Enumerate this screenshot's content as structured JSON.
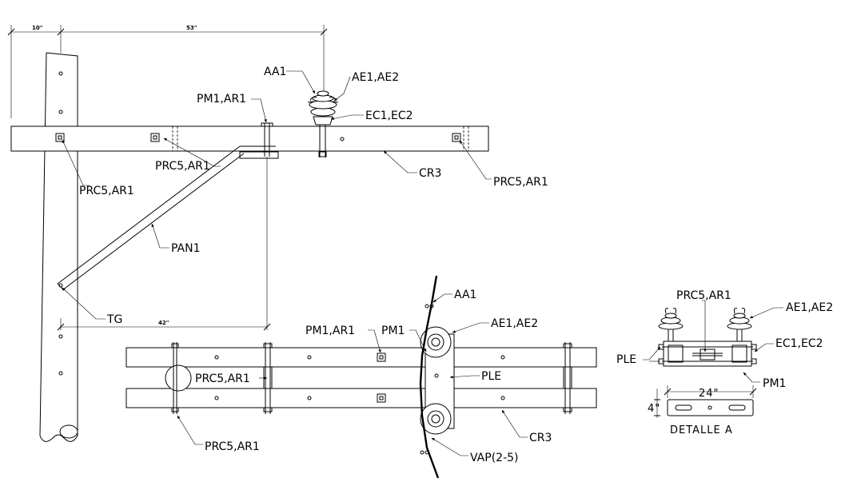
{
  "dimensions": {
    "top_left": "10\"",
    "top_right": "53\"",
    "brace": "42\"",
    "detail_width": "24\"",
    "detail_height": "4\""
  },
  "labels": {
    "aa1_top": "AA1",
    "ae1_ae2_top": "AE1,AE2",
    "pm1_ar1_top": "PM1,AR1",
    "ec1_ec2_top": "EC1,EC2",
    "prc5_ar1_mid": "PRC5,AR1",
    "prc5_ar1_left": "PRC5,AR1",
    "prc5_ar1_right": "PRC5,AR1",
    "cr3_top": "CR3",
    "pan1": "PAN1",
    "tg": "TG",
    "aa1_bottom": "AA1",
    "pm1_ar1_bottom": "PM1,AR1",
    "pm1_bottom": "PM1",
    "ae1_ae2_bottom": "AE1,AE2",
    "prc5_ar1_between": "PRC5,AR1",
    "ple_bottom": "PLE",
    "prc5_ar1_bottom": "PRC5,AR1",
    "cr3_bottom": "CR3",
    "vap": "VAP(2-5)",
    "prc5_ar1_detail": "PRC5,AR1",
    "ae1_ae2_detail": "AE1,AE2",
    "ple_detail": "PLE",
    "ec1_ec2_detail": "EC1,EC2",
    "pm1_detail": "PM1",
    "detail_title": "DETALLE A"
  }
}
